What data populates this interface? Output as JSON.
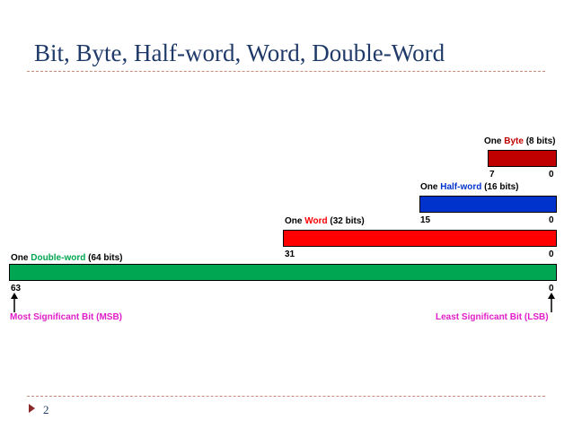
{
  "title": "Bit, Byte, Half-word, Word, Double-Word",
  "page_number": "2",
  "colors": {
    "title": "#1f3a68",
    "byte": "#c00000",
    "half_word": "#0033cc",
    "word": "#ff0000",
    "double_word": "#00a651",
    "significance_labels": "#e01ec8"
  },
  "units": {
    "byte": {
      "prefix": "One ",
      "name": "Byte",
      "suffix": " (8 bits)",
      "high_bit": "7",
      "low_bit": "0"
    },
    "half_word": {
      "prefix": "One ",
      "name": "Half-word",
      "suffix": " (16 bits)",
      "high_bit": "15",
      "low_bit": "0"
    },
    "word": {
      "prefix": "One ",
      "name": "Word",
      "suffix": " (32 bits)",
      "high_bit": "31",
      "low_bit": "0"
    },
    "double_word": {
      "prefix": "One ",
      "name": "Double-word",
      "suffix": " (64 bits)",
      "high_bit": "63",
      "low_bit": "0"
    }
  },
  "msb_label": "Most Significant Bit (MSB)",
  "lsb_label": "Least Significant Bit (LSB)"
}
